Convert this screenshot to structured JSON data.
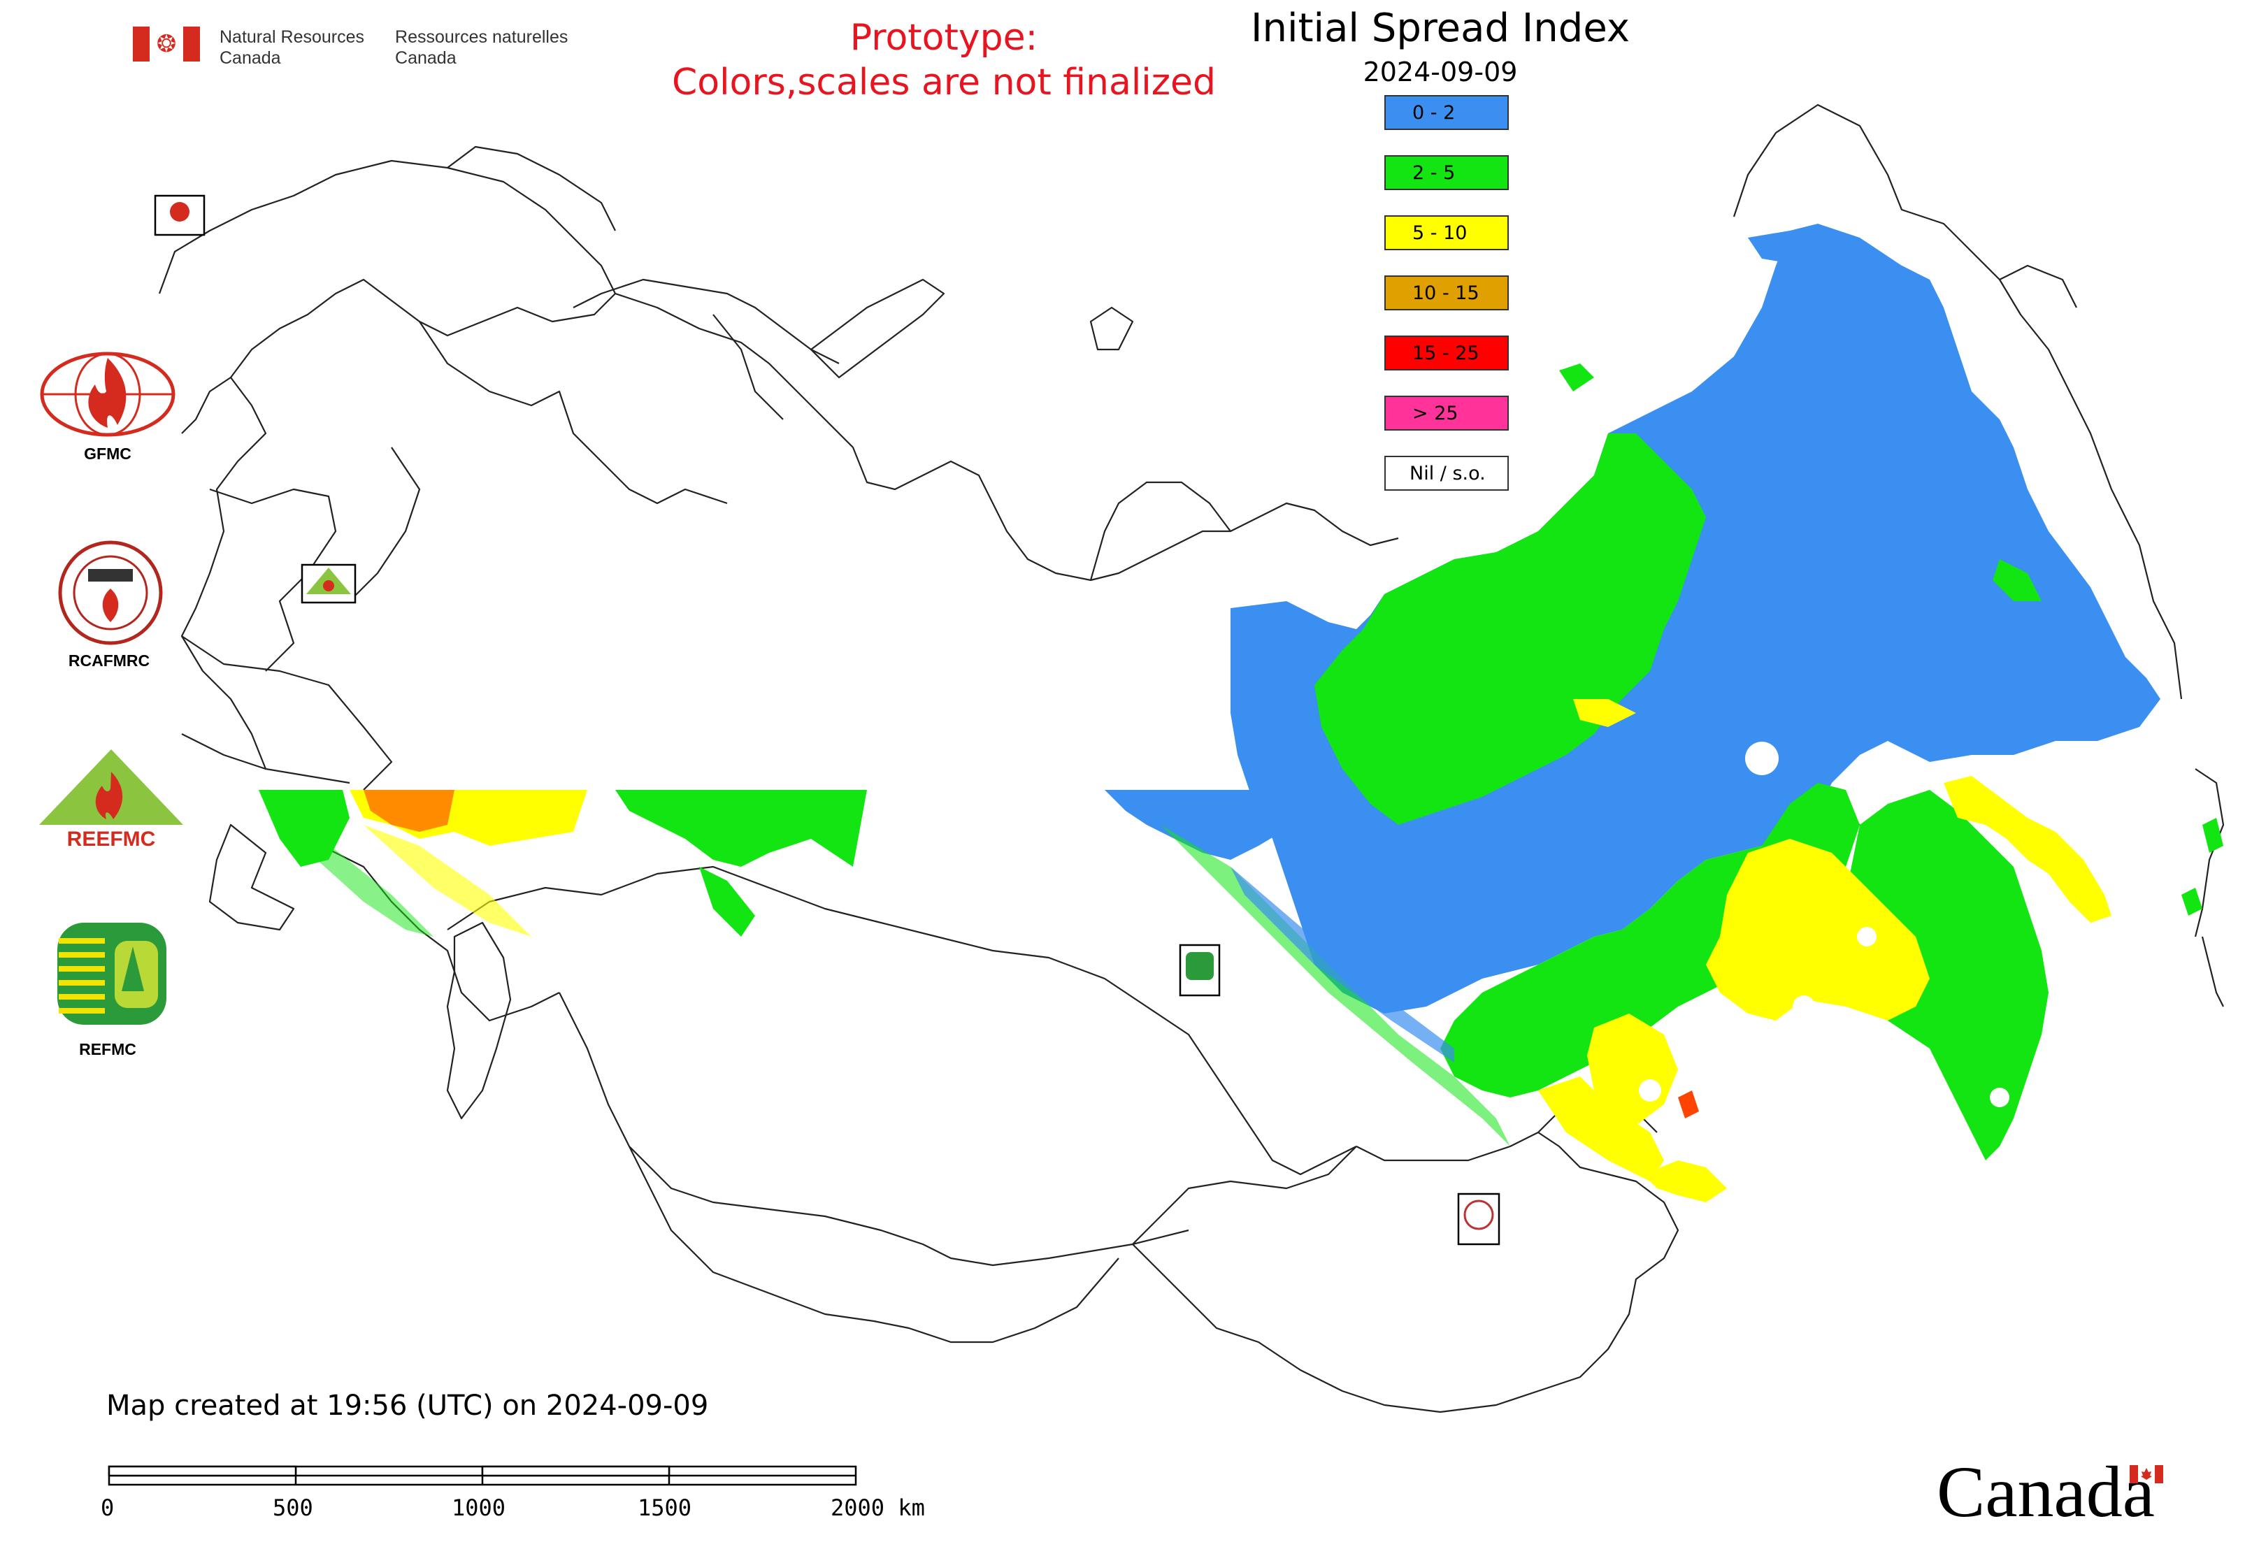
{
  "header": {
    "dept_en_line1": "Natural Resources",
    "dept_en_line2": "Canada",
    "dept_fr_line1": "Ressources naturelles",
    "dept_fr_line2": "Canada",
    "prototype_line1": "Prototype:",
    "prototype_line2": "Colors,scales are not finalized"
  },
  "map": {
    "title": "Initial Spread Index",
    "date": "2024-09-09",
    "legend": [
      {
        "label": "0 - 2",
        "color": "#3a8ff0"
      },
      {
        "label": "2 - 5",
        "color": "#12e512"
      },
      {
        "label": "5 - 10",
        "color": "#ffff00"
      },
      {
        "label": "10 - 15",
        "color": "#e0a000"
      },
      {
        "label": "15 - 25",
        "color": "#ff0000"
      },
      {
        "label": "> 25",
        "color": "#ff3399"
      },
      {
        "label": "Nil / s.o.",
        "color": "#ffffff"
      }
    ],
    "map_logos": [
      "GFMC",
      "REEFMC",
      "REFMC",
      "RCAFMRC"
    ]
  },
  "side_logos": [
    {
      "caption": "GFMC",
      "icon": "gfmc-globe-flame-icon"
    },
    {
      "caption": "RCAFMRC",
      "icon": "rcafmrc-seal-icon"
    },
    {
      "caption": "",
      "icon": "reefmc-triangle-icon",
      "wordmark": "REEFMC"
    },
    {
      "caption": "REFMC",
      "icon": "refmc-sigma-icon"
    }
  ],
  "footer": {
    "created": "Map created at 19:56 (UTC) on 2024-09-09",
    "scale_ticks": [
      "0",
      "500",
      "1000",
      "1500",
      "2000 km"
    ],
    "wordmark": "Canada"
  }
}
